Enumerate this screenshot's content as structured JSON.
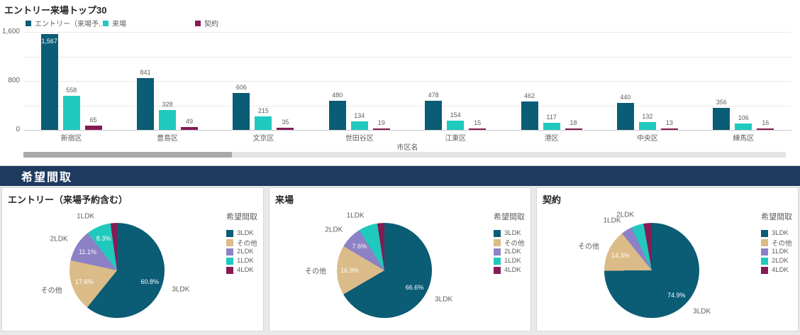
{
  "section": {
    "title": "希望間取",
    "bg_color": "#1E3A5F"
  },
  "chart_data": [
    {
      "type": "bar",
      "title": "エントリー来場トップ30",
      "xlabel": "市区名",
      "ylim": [
        0,
        1600
      ],
      "y_ticks": [
        {
          "value": 0,
          "label": "0"
        },
        {
          "value": 800,
          "label": "800"
        },
        {
          "value": 1600,
          "label": "1,600"
        }
      ],
      "gridline_values": [
        0,
        400,
        800,
        1200,
        1600
      ],
      "grid": true,
      "legend_position": "top",
      "has_horizontal_scrollbar": true,
      "categories": [
        "新宿区",
        "豊島区",
        "文京区",
        "世田谷区",
        "江東区",
        "港区",
        "中央区",
        "練馬区"
      ],
      "series": [
        {
          "name": "エントリー（来場予...",
          "color": "#0B5C75",
          "values": [
            1567,
            841,
            606,
            480,
            478,
            462,
            440,
            356
          ]
        },
        {
          "name": "来場",
          "color": "#20C9BE",
          "values": [
            558,
            328,
            215,
            134,
            154,
            117,
            132,
            106
          ]
        },
        {
          "name": "契約",
          "color": "#841C54",
          "values": [
            65,
            49,
            35,
            19,
            15,
            18,
            13,
            16
          ]
        }
      ]
    },
    {
      "type": "pie",
      "title": "エントリー（来場予約含む）",
      "legend_title": "希望間取",
      "legend_position": "right",
      "slices": [
        {
          "label": "3LDK",
          "pct": 60.8,
          "pct_label": "60.8%",
          "color": "#0B5C75",
          "show_pct": true,
          "show_name": true
        },
        {
          "label": "その他",
          "pct": 17.6,
          "pct_label": "17.6%",
          "color": "#DBBB88",
          "show_pct": true,
          "show_name": true
        },
        {
          "label": "2LDK",
          "pct": 11.1,
          "pct_label": "11.1%",
          "color": "#8D81C6",
          "show_pct": true,
          "show_name": true
        },
        {
          "label": "1LDK",
          "pct": 8.3,
          "pct_label": "8.3%",
          "color": "#20C9BE",
          "show_pct": true,
          "show_name": true
        },
        {
          "label": "4LDK",
          "pct": 2.2,
          "pct_label": "2.2%",
          "color": "#841C54",
          "show_pct": false,
          "show_name": false
        }
      ]
    },
    {
      "type": "pie",
      "title": "来場",
      "legend_title": "希望間取",
      "legend_position": "right",
      "slices": [
        {
          "label": "3LDK",
          "pct": 66.6,
          "pct_label": "66.6%",
          "color": "#0B5C75",
          "show_pct": true,
          "show_name": true
        },
        {
          "label": "その他",
          "pct": 16.9,
          "pct_label": "16.9%",
          "color": "#DBBB88",
          "show_pct": true,
          "show_name": true
        },
        {
          "label": "2LDK",
          "pct": 7.6,
          "pct_label": "7.6%",
          "color": "#8D81C6",
          "show_pct": true,
          "show_name": true
        },
        {
          "label": "1LDK",
          "pct": 6.5,
          "pct_label": "6.5%",
          "color": "#20C9BE",
          "show_pct": false,
          "show_name": true
        },
        {
          "label": "4LDK",
          "pct": 2.4,
          "pct_label": "2.4%",
          "color": "#841C54",
          "show_pct": false,
          "show_name": false
        }
      ]
    },
    {
      "type": "pie",
      "title": "契約",
      "legend_title": "希望間取",
      "legend_position": "right",
      "slices": [
        {
          "label": "3LDK",
          "pct": 74.9,
          "pct_label": "74.9%",
          "color": "#0B5C75",
          "show_pct": true,
          "show_name": true
        },
        {
          "label": "その他",
          "pct": 14.3,
          "pct_label": "14.3%",
          "color": "#DBBB88",
          "show_pct": true,
          "show_name": true
        },
        {
          "label": "1LDK",
          "pct": 3.8,
          "pct_label": "3.8%",
          "color": "#8D81C6",
          "show_pct": false,
          "show_name": true
        },
        {
          "label": "2LDK",
          "pct": 4.2,
          "pct_label": "4.2%",
          "color": "#20C9BE",
          "show_pct": false,
          "show_name": true
        },
        {
          "label": "4LDK",
          "pct": 2.8,
          "pct_label": "2.8%",
          "color": "#841C54",
          "show_pct": false,
          "show_name": false
        }
      ]
    }
  ]
}
